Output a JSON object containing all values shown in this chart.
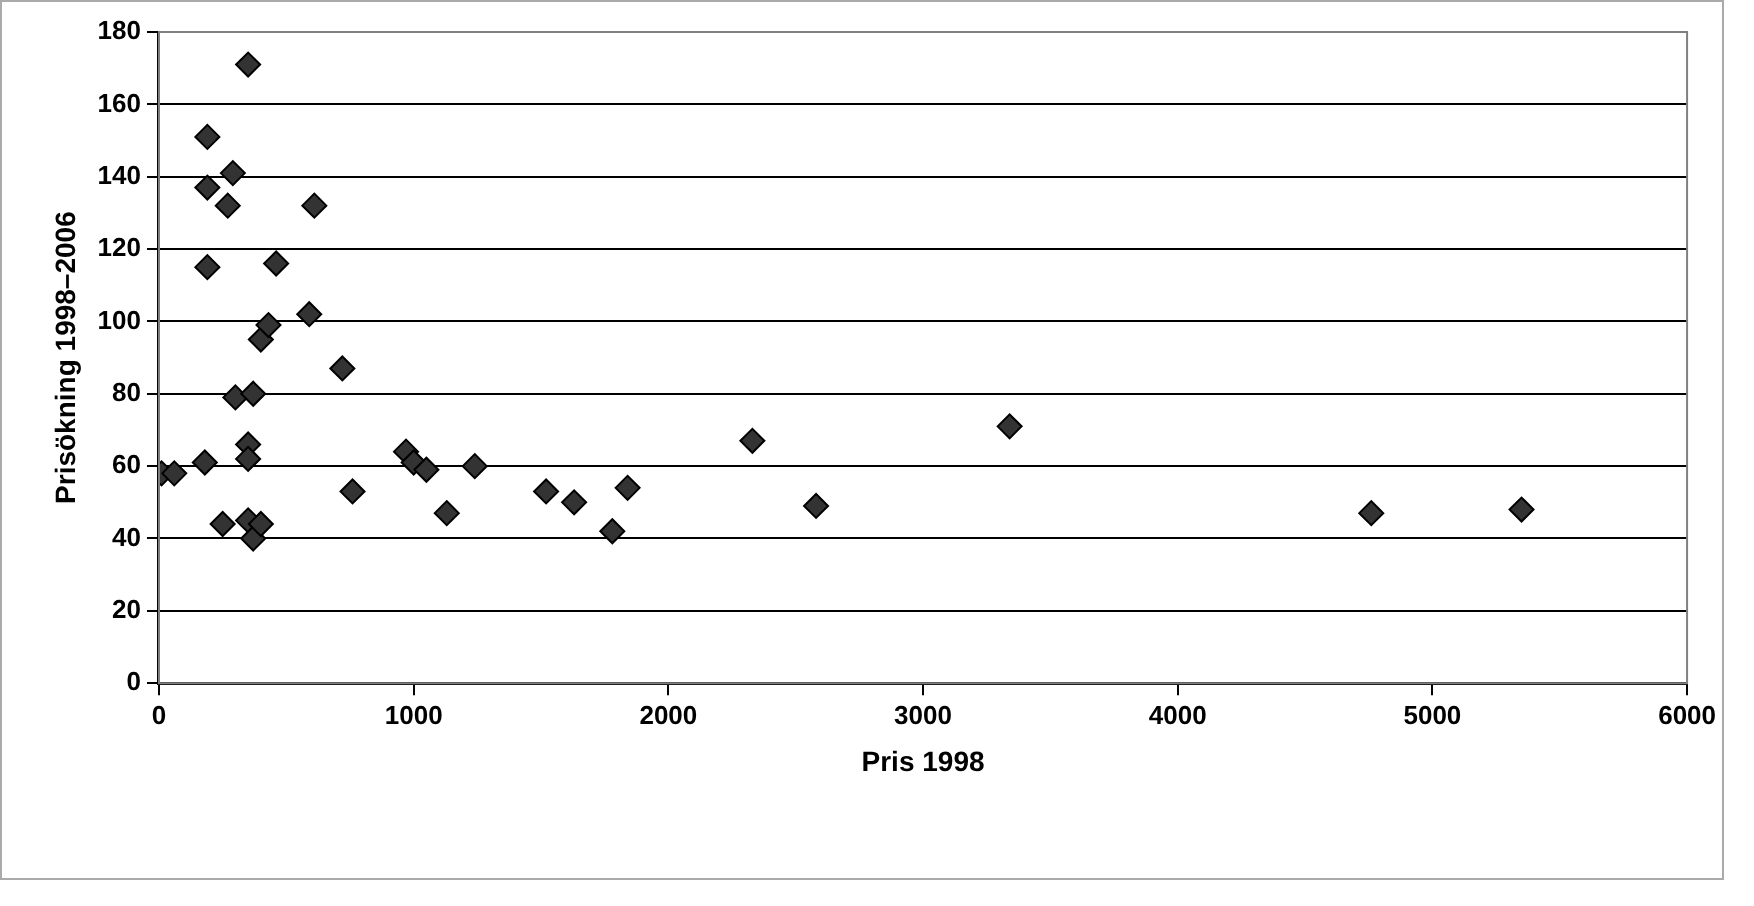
{
  "chart_data": {
    "type": "scatter",
    "xlabel": "Pris 1998",
    "ylabel": "Prisökning 1998–2006",
    "x": [
      10,
      60,
      180,
      190,
      190,
      190,
      250,
      270,
      290,
      300,
      350,
      350,
      350,
      350,
      370,
      370,
      400,
      400,
      430,
      460,
      590,
      610,
      720,
      760,
      970,
      1000,
      1050,
      1130,
      1240,
      1520,
      1630,
      1780,
      1840,
      2330,
      2580,
      3340,
      4760,
      5350
    ],
    "series": [
      {
        "color": "#333333",
        "values": [
          58,
          58,
          61,
          151,
          137,
          115,
          44,
          132,
          141,
          79,
          171,
          66,
          62,
          45,
          80,
          40,
          95,
          44,
          99,
          116,
          102,
          132,
          87,
          53,
          64,
          61,
          59,
          47,
          60,
          53,
          50,
          42,
          54,
          67,
          49,
          71,
          47,
          48
        ]
      }
    ],
    "xlim": [
      0,
      6000
    ],
    "xticks": [
      0,
      1000,
      2000,
      3000,
      4000,
      5000,
      6000
    ],
    "ylim": [
      0,
      180
    ],
    "yticks": [
      0,
      20,
      40,
      60,
      80,
      100,
      120,
      140,
      160,
      180
    ],
    "grid": "y",
    "legend": false,
    "marker": "diamond"
  }
}
